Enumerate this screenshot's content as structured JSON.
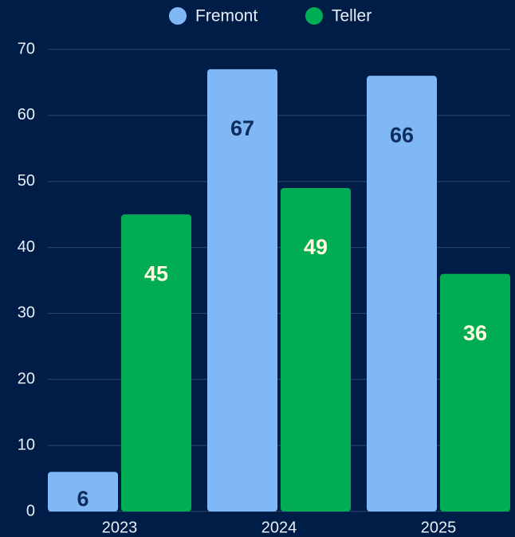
{
  "chart_data": {
    "type": "bar",
    "categories": [
      "2023",
      "2024",
      "2025"
    ],
    "series": [
      {
        "name": "Fremont",
        "color": "#7fb8f5",
        "label_color": "#0f2d5c",
        "values": [
          6,
          67,
          66
        ]
      },
      {
        "name": "Teller",
        "color": "#00ad55",
        "label_color": "#fffbe3",
        "values": [
          45,
          49,
          36
        ]
      }
    ],
    "ylim": [
      0,
      70
    ],
    "yticks": [
      0,
      10,
      20,
      30,
      40,
      50,
      60,
      70
    ],
    "grid": true,
    "legend": "top"
  }
}
